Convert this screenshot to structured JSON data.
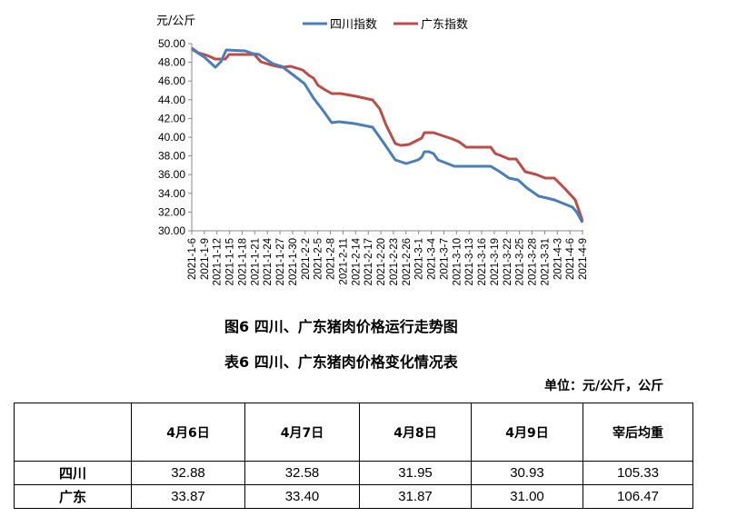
{
  "chart_data": {
    "type": "line",
    "title": "图6 四川、广东猪肉价格运行走势图",
    "ylabel": "元/公斤",
    "xlabel": "",
    "ylim": [
      30,
      50
    ],
    "yticks": [
      "50.00",
      "48.00",
      "46.00",
      "44.00",
      "42.00",
      "40.00",
      "38.00",
      "36.00",
      "34.00",
      "32.00",
      "30.00"
    ],
    "grid": false,
    "legend_position": "top",
    "categories": [
      "2021-1-6",
      "2021-1-9",
      "2021-1-12",
      "2021-1-15",
      "2021-1-18",
      "2021-1-21",
      "2021-1-24",
      "2021-1-27",
      "2021-1-30",
      "2021-2-2",
      "2021-2-5",
      "2021-2-8",
      "2021-2-11",
      "2021-2-14",
      "2021-2-17",
      "2021-2-20",
      "2021-2-23",
      "2021-2-26",
      "2021-3-1",
      "2021-3-4",
      "2021-3-7",
      "2021-3-10",
      "2021-3-13",
      "2021-3-16",
      "2021-3-19",
      "2021-3-22",
      "2021-3-25",
      "2021-3-28",
      "2021-3-31",
      "2021-4-3",
      "2021-4-6",
      "2021-4-9"
    ],
    "series": [
      {
        "name": "四川指数",
        "color": "#4a7ebb",
        "values": [
          49.4,
          48.5,
          47.6,
          49.3,
          49.2,
          48.8,
          47.9,
          47.5,
          46.6,
          45.8,
          43.5,
          41.6,
          41.6,
          41.4,
          41.2,
          39.5,
          37.4,
          37.3,
          37.6,
          38.3,
          37.5,
          36.9,
          36.9,
          36.9,
          36.9,
          36.2,
          35.5,
          34.7,
          33.7,
          33.4,
          32.9,
          30.9
        ]
      },
      {
        "name": "广东指数",
        "color": "#be4b48",
        "values": [
          49.5,
          48.9,
          48.3,
          48.8,
          48.8,
          48.7,
          47.9,
          47.6,
          47.5,
          47.2,
          45.9,
          44.7,
          44.6,
          44.3,
          44.0,
          42.0,
          39.4,
          39.3,
          39.8,
          40.5,
          40.2,
          39.7,
          38.9,
          38.9,
          38.9,
          37.9,
          37.7,
          36.3,
          35.8,
          35.6,
          33.9,
          31.0
        ]
      }
    ],
    "series_pixel_paths": {
      "sichuan": "211,54 225,63 237,74 243,68 249,55 270,56 278,59 285,60 300,70 310,73 322,82 335,92 345,108 355,121 365,135 373,134 390,136 410,140 422,157 435,176 447,180 460,176 464,173 467,167 472,167 477,169 482,176 500,183 520,183 540,183 550,189 560,196 570,198 580,207 593,216 602,218 610,220 620,224 630,228 635,234 641,245",
      "guangdong": "211,53 218,58 228,61 237,65 248,65 252,60 266,60 280,60 287,68 300,72 310,74 320,73 333,77 340,83 345,86 350,94 358,99 365,103 375,103 392,106 410,110 418,120 425,138 435,158 441,160 450,159 458,155 464,152 467,146 477,146 489,150 498,153 505,156 513,162 527,162 540,162 545,169 553,172 560,175 568,175 578,189 590,192 600,196 610,196 622,208 633,220 641,243"
    }
  },
  "chart": {
    "unit_label": "元/公斤",
    "legend": [
      {
        "label": "四川指数",
        "color": "#4a7ebb"
      },
      {
        "label": "广东指数",
        "color": "#be4b48"
      }
    ],
    "caption": "图6 四川、广东猪肉价格运行走势图"
  },
  "table": {
    "caption": "表6 四川、广东猪肉价格变化情况表",
    "unit": "单位：元/公斤，公斤",
    "headers": [
      "",
      "4月6日",
      "4月7日",
      "4月8日",
      "4月9日",
      "宰后均重"
    ],
    "rows": [
      {
        "label": "四川",
        "cells": [
          "32.88",
          "32.58",
          "31.95",
          "30.93",
          "105.33"
        ]
      },
      {
        "label": "广东",
        "cells": [
          "33.87",
          "33.40",
          "31.87",
          "31.00",
          "106.47"
        ]
      }
    ]
  }
}
